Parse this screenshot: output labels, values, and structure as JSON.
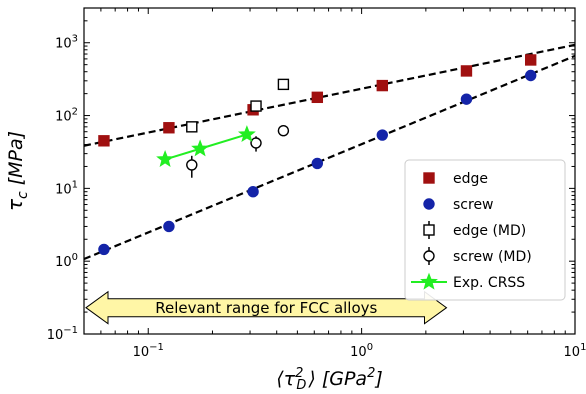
{
  "chart_data": {
    "type": "scatter",
    "xscale": "log",
    "yscale": "log",
    "xlim": [
      0.05,
      10
    ],
    "ylim": [
      0.1,
      3000
    ],
    "xlabel": "⟨τ²_D⟩ [GPa²]",
    "ylabel": "τ_c [MPa]",
    "xticks": [
      {
        "value": 0.1,
        "base": "10",
        "exp": "−1"
      },
      {
        "value": 1,
        "base": "10",
        "exp": "0"
      },
      {
        "value": 10,
        "base": "10",
        "exp": "1"
      }
    ],
    "yticks": [
      {
        "value": 0.1,
        "base": "10",
        "exp": "−1"
      },
      {
        "value": 1,
        "base": "10",
        "exp": "0"
      },
      {
        "value": 10,
        "base": "10",
        "exp": "1"
      },
      {
        "value": 100,
        "base": "10",
        "exp": "2"
      },
      {
        "value": 1000,
        "base": "10",
        "exp": "3"
      }
    ],
    "series": [
      {
        "name": "edge",
        "marker": "square",
        "filled": true,
        "color": "#a01010",
        "points": [
          [
            0.062,
            45
          ],
          [
            0.125,
            68
          ],
          [
            0.31,
            120
          ],
          [
            0.62,
            178
          ],
          [
            1.25,
            258
          ],
          [
            3.1,
            410
          ],
          [
            6.2,
            580
          ]
        ]
      },
      {
        "name": "screw",
        "marker": "circle",
        "filled": true,
        "color": "#1424a8",
        "points": [
          [
            0.062,
            1.45
          ],
          [
            0.125,
            3.0
          ],
          [
            0.31,
            9.0
          ],
          [
            0.62,
            22
          ],
          [
            1.25,
            54
          ],
          [
            3.1,
            168
          ],
          [
            6.2,
            355
          ]
        ]
      },
      {
        "name": "edge (MD)",
        "marker": "square",
        "filled": false,
        "color": "#000000",
        "points": [
          {
            "x": 0.16,
            "y": 70,
            "err": 6
          },
          {
            "x": 0.32,
            "y": 135,
            "err": 12
          },
          {
            "x": 0.43,
            "y": 268,
            "err": 25
          }
        ]
      },
      {
        "name": "screw (MD)",
        "marker": "circle",
        "filled": false,
        "color": "#000000",
        "points": [
          {
            "x": 0.16,
            "y": 21,
            "err": 7
          },
          {
            "x": 0.32,
            "y": 42,
            "err": 10
          },
          {
            "x": 0.43,
            "y": 62,
            "err": 4
          }
        ]
      },
      {
        "name": "Exp. CRSS",
        "marker": "star",
        "filled": true,
        "color": "#22ee22",
        "line": true,
        "points": [
          [
            0.12,
            25
          ],
          [
            0.175,
            35
          ],
          [
            0.29,
            55
          ]
        ]
      }
    ],
    "fit_lines": [
      {
        "for": "edge",
        "style": "dashed",
        "color": "#000000",
        "points": [
          [
            0.05,
            38.5
          ],
          [
            10,
            935
          ]
        ]
      },
      {
        "for": "screw",
        "style": "dashed",
        "color": "#000000",
        "points": [
          [
            0.05,
            1.07
          ],
          [
            10,
            660
          ]
        ]
      }
    ],
    "legend": {
      "position": "lower-right"
    },
    "annotation": {
      "text": "Relevant range for FCC alloys",
      "style": "double-headed arrow",
      "x_range": [
        0.05,
        2.5
      ],
      "y": 0.23,
      "color": "#fff6a6"
    }
  }
}
